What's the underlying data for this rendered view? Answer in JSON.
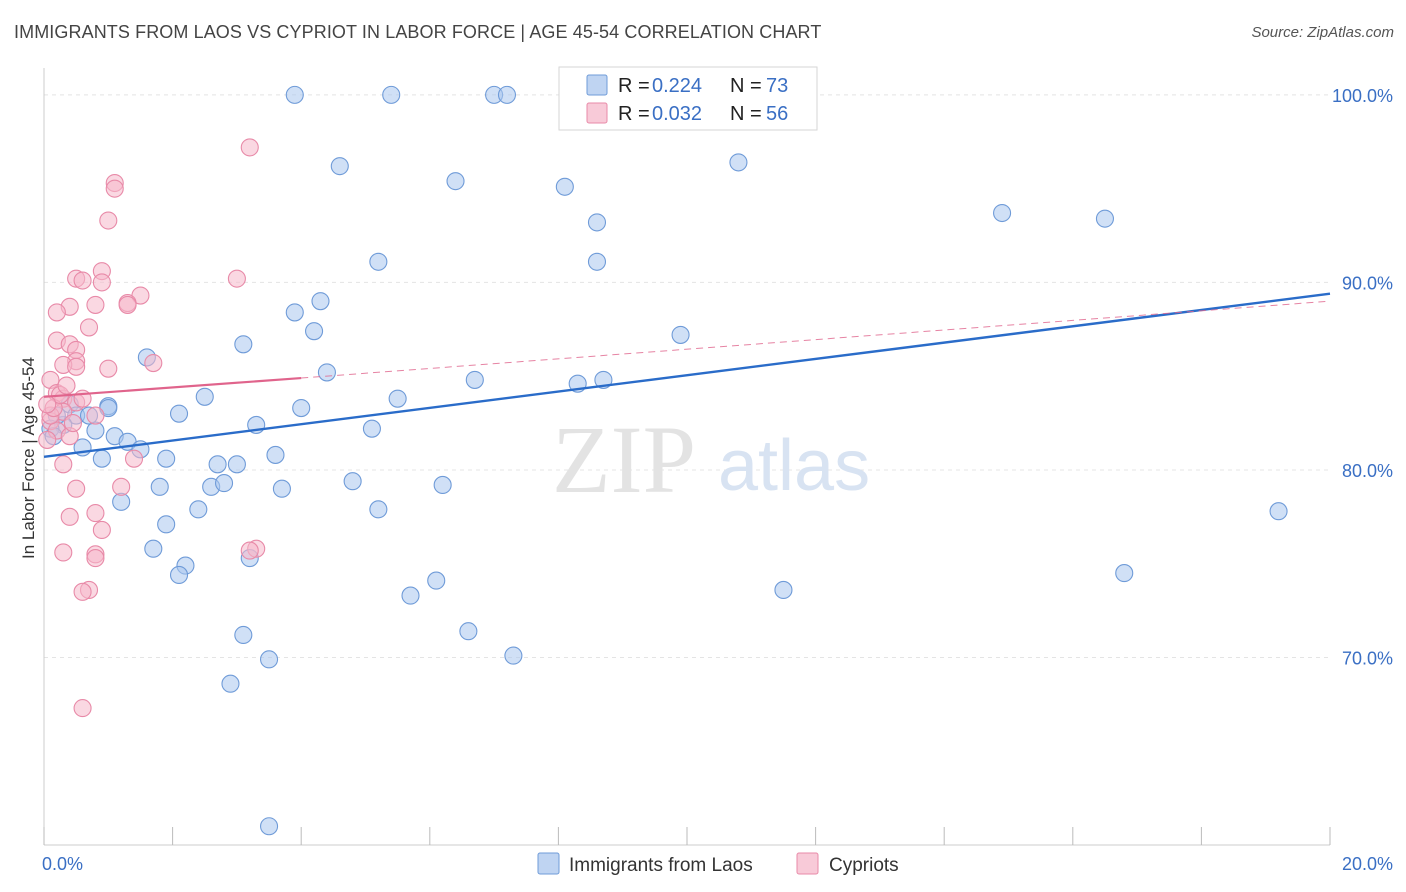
{
  "chart_data": {
    "type": "scatter",
    "title": "IMMIGRANTS FROM LAOS VS CYPRIOT IN LABOR FORCE | AGE 45-54 CORRELATION CHART",
    "source": "Source: ZipAtlas.com",
    "xlabel": "",
    "ylabel": "In Labor Force | Age 45-54",
    "xlim": [
      0,
      20
    ],
    "ylim": [
      60,
      102.5
    ],
    "x_tick_labels": [
      {
        "value": 0,
        "label": "0.0%"
      },
      {
        "value": 20,
        "label": "20.0%"
      }
    ],
    "y_tick_labels": [
      {
        "value": 100,
        "label": "100.0%"
      },
      {
        "value": 90,
        "label": "90.0%"
      },
      {
        "value": 80,
        "label": "80.0%"
      },
      {
        "value": 70,
        "label": "70.0%"
      }
    ],
    "grid": true,
    "legend_position": "top-center",
    "watermark": {
      "part1": "ZIP",
      "part2": "atlas"
    },
    "series": [
      {
        "name": "Immigrants from Laos",
        "color": "#a9c6ee",
        "stroke": "#6f9bd8",
        "line_color": "#2a6cc9",
        "R": "0.224",
        "N": "73",
        "trend": {
          "x": [
            0,
            20
          ],
          "y": [
            80.7,
            89.4
          ]
        },
        "points": [
          [
            3.9,
            100
          ],
          [
            5.4,
            100
          ],
          [
            7.0,
            100
          ],
          [
            7.2,
            100
          ],
          [
            4.6,
            96.2
          ],
          [
            6.4,
            95.4
          ],
          [
            8.1,
            95.1
          ],
          [
            10.8,
            96.4
          ],
          [
            8.6,
            93.2
          ],
          [
            14.9,
            93.7
          ],
          [
            16.5,
            93.4
          ],
          [
            5.2,
            91.1
          ],
          [
            8.6,
            91.1
          ],
          [
            4.3,
            89.0
          ],
          [
            3.9,
            88.4
          ],
          [
            4.2,
            87.4
          ],
          [
            9.9,
            87.2
          ],
          [
            3.1,
            86.7
          ],
          [
            1.6,
            86.0
          ],
          [
            4.4,
            85.2
          ],
          [
            6.7,
            84.8
          ],
          [
            8.3,
            84.6
          ],
          [
            8.7,
            84.8
          ],
          [
            2.5,
            83.9
          ],
          [
            5.5,
            83.8
          ],
          [
            0.4,
            83.5
          ],
          [
            1.0,
            83.4
          ],
          [
            4.0,
            83.3
          ],
          [
            2.1,
            83.0
          ],
          [
            0.5,
            82.9
          ],
          [
            3.3,
            82.4
          ],
          [
            5.1,
            82.2
          ],
          [
            0.8,
            82.1
          ],
          [
            0.3,
            82.4
          ],
          [
            0.2,
            82.9
          ],
          [
            0.6,
            81.2
          ],
          [
            1.1,
            81.8
          ],
          [
            1.3,
            81.5
          ],
          [
            1.5,
            81.1
          ],
          [
            0.9,
            80.6
          ],
          [
            1.9,
            80.6
          ],
          [
            3.6,
            80.8
          ],
          [
            2.7,
            80.3
          ],
          [
            3.0,
            80.3
          ],
          [
            1.8,
            79.1
          ],
          [
            2.6,
            79.1
          ],
          [
            2.8,
            79.3
          ],
          [
            3.7,
            79.0
          ],
          [
            4.8,
            79.4
          ],
          [
            6.2,
            79.2
          ],
          [
            1.2,
            78.3
          ],
          [
            2.4,
            77.9
          ],
          [
            5.2,
            77.9
          ],
          [
            1.0,
            83.3
          ],
          [
            1.9,
            77.1
          ],
          [
            1.7,
            75.8
          ],
          [
            2.2,
            74.9
          ],
          [
            2.1,
            74.4
          ],
          [
            3.2,
            75.3
          ],
          [
            5.7,
            73.3
          ],
          [
            6.1,
            74.1
          ],
          [
            11.5,
            73.6
          ],
          [
            16.8,
            74.5
          ],
          [
            19.2,
            77.8
          ],
          [
            3.1,
            71.2
          ],
          [
            6.6,
            71.4
          ],
          [
            7.3,
            70.1
          ],
          [
            3.5,
            69.9
          ],
          [
            2.9,
            68.6
          ],
          [
            3.5,
            61.0
          ],
          [
            0.1,
            82.2
          ],
          [
            0.7,
            82.9
          ],
          [
            0.15,
            81.8
          ]
        ]
      },
      {
        "name": "Cypriots",
        "color": "#f5b8cb",
        "stroke": "#e88aa8",
        "line_color": "#e0648c",
        "R": "0.032",
        "N": "56",
        "trend": {
          "x": [
            0,
            4.0
          ],
          "y": [
            83.9,
            84.9
          ]
        },
        "trend_extension": {
          "x": [
            4.0,
            20
          ],
          "y": [
            84.9,
            89.0
          ]
        },
        "points": [
          [
            3.2,
            97.2
          ],
          [
            1.1,
            95.3
          ],
          [
            1.1,
            95.0
          ],
          [
            1.0,
            93.3
          ],
          [
            0.9,
            90.6
          ],
          [
            0.5,
            90.2
          ],
          [
            0.6,
            90.1
          ],
          [
            0.9,
            90.0
          ],
          [
            3.0,
            90.2
          ],
          [
            1.5,
            89.3
          ],
          [
            0.8,
            88.8
          ],
          [
            0.4,
            88.7
          ],
          [
            1.3,
            88.9
          ],
          [
            0.2,
            88.4
          ],
          [
            0.7,
            87.6
          ],
          [
            1.3,
            88.8
          ],
          [
            0.2,
            86.9
          ],
          [
            0.4,
            86.7
          ],
          [
            0.5,
            86.4
          ],
          [
            0.5,
            85.8
          ],
          [
            0.3,
            85.6
          ],
          [
            0.5,
            85.5
          ],
          [
            1.7,
            85.7
          ],
          [
            1.0,
            85.4
          ],
          [
            0.1,
            84.8
          ],
          [
            0.2,
            84.1
          ],
          [
            0.3,
            83.8
          ],
          [
            0.5,
            83.6
          ],
          [
            0.6,
            83.8
          ],
          [
            0.3,
            83.1
          ],
          [
            0.1,
            82.6
          ],
          [
            0.2,
            82.1
          ],
          [
            0.4,
            81.8
          ],
          [
            0.05,
            81.6
          ],
          [
            0.1,
            82.9
          ],
          [
            0.8,
            82.9
          ],
          [
            0.3,
            80.3
          ],
          [
            1.4,
            80.6
          ],
          [
            0.5,
            79.0
          ],
          [
            1.2,
            79.1
          ],
          [
            0.8,
            77.7
          ],
          [
            0.4,
            77.5
          ],
          [
            0.9,
            76.8
          ],
          [
            0.3,
            75.6
          ],
          [
            0.8,
            75.5
          ],
          [
            0.8,
            75.3
          ],
          [
            3.3,
            75.8
          ],
          [
            3.2,
            75.7
          ],
          [
            0.7,
            73.6
          ],
          [
            0.6,
            73.5
          ],
          [
            0.6,
            67.3
          ],
          [
            0.15,
            83.3
          ],
          [
            0.25,
            84.0
          ],
          [
            0.35,
            84.5
          ],
          [
            0.45,
            82.5
          ],
          [
            0.05,
            83.5
          ]
        ]
      }
    ]
  }
}
